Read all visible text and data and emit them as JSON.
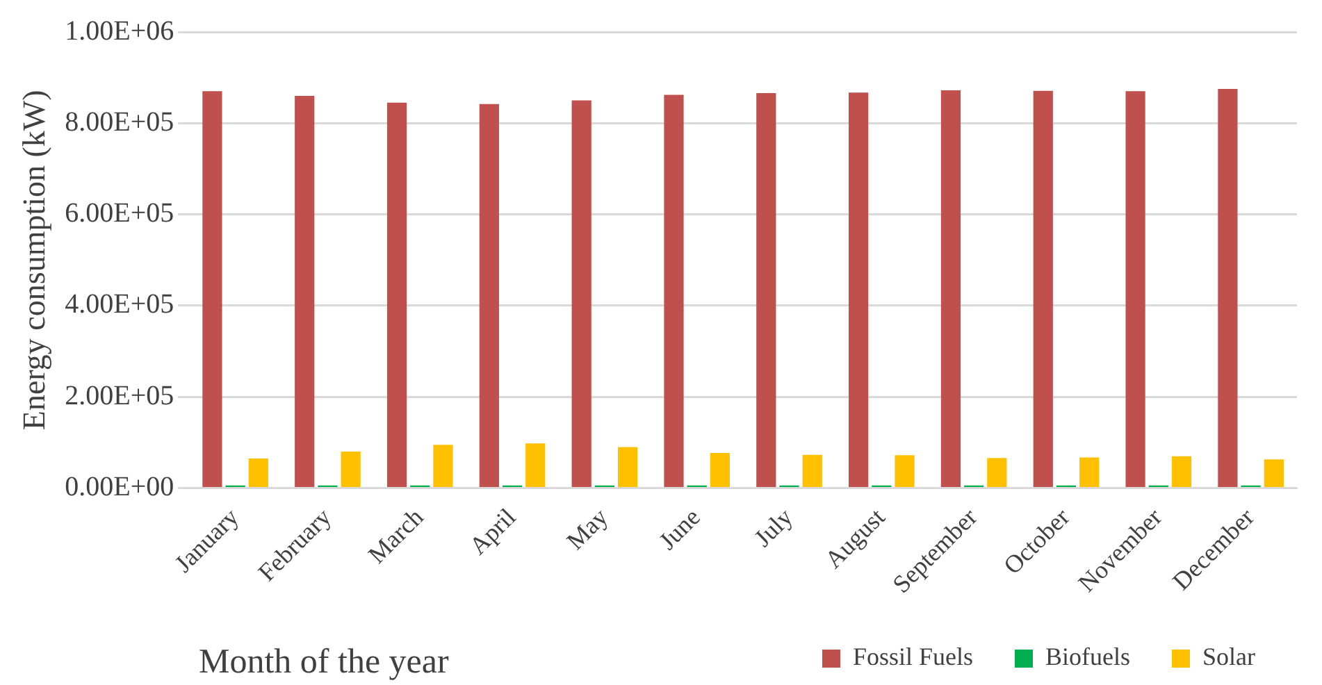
{
  "chart_data": {
    "type": "bar",
    "xlabel": "Month of the year",
    "ylabel": "Energy consumption (kW)",
    "categories": [
      "January",
      "February",
      "March",
      "April",
      "May",
      "June",
      "July",
      "August",
      "September",
      "October",
      "November",
      "December"
    ],
    "series": [
      {
        "name": "Fossil Fuels",
        "color": "#c0504d",
        "values": [
          870000,
          860000,
          845000,
          842000,
          850000,
          862000,
          866000,
          867000,
          872000,
          871000,
          870000,
          875000
        ]
      },
      {
        "name": "Biofuels",
        "color": "#00b050",
        "values": [
          6000,
          6000,
          6000,
          6000,
          6000,
          6000,
          6000,
          6000,
          6000,
          6000,
          6000,
          6000
        ]
      },
      {
        "name": "Solar",
        "color": "#ffc000",
        "values": [
          65000,
          80000,
          95000,
          98000,
          90000,
          77000,
          73000,
          72000,
          66000,
          67000,
          70000,
          63000
        ]
      }
    ],
    "ylim": [
      0,
      1000000
    ],
    "yticks": [
      {
        "value": 0,
        "label": "0.00E+00"
      },
      {
        "value": 200000,
        "label": "2.00E+05"
      },
      {
        "value": 400000,
        "label": "4.00E+05"
      },
      {
        "value": 600000,
        "label": "6.00E+05"
      },
      {
        "value": 800000,
        "label": "8.00E+05"
      },
      {
        "value": 1000000,
        "label": "1.00E+06"
      }
    ],
    "grid": "y",
    "legend": "bottom right"
  }
}
